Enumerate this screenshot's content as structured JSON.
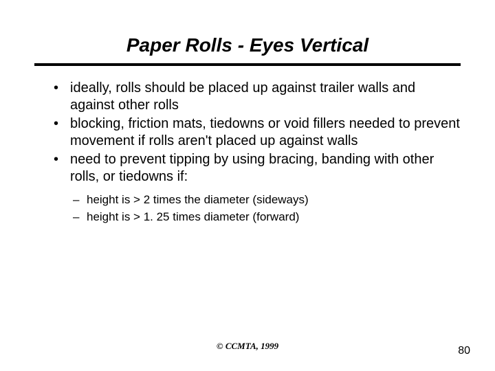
{
  "title": "Paper Rolls - Eyes Vertical",
  "bullets": [
    "ideally, rolls should be placed up against trailer walls and against other rolls",
    "blocking, friction mats, tiedowns or void fillers needed to prevent movement if rolls aren't placed up against walls",
    "need to prevent tipping by using bracing, banding with other rolls, or tiedowns if:"
  ],
  "sub_bullets": [
    "height is > 2 times the diameter (sideways)",
    "height is > 1. 25 times diameter (forward)"
  ],
  "footer": "© CCMTA, 1999",
  "page_number": "80",
  "colors": {
    "text": "#000000",
    "background": "#ffffff",
    "rule": "#000000"
  },
  "typography": {
    "title_fontsize": 28,
    "bullet_fontsize": 20,
    "sub_bullet_fontsize": 17,
    "footer_fontsize": 13,
    "page_num_fontsize": 16
  }
}
